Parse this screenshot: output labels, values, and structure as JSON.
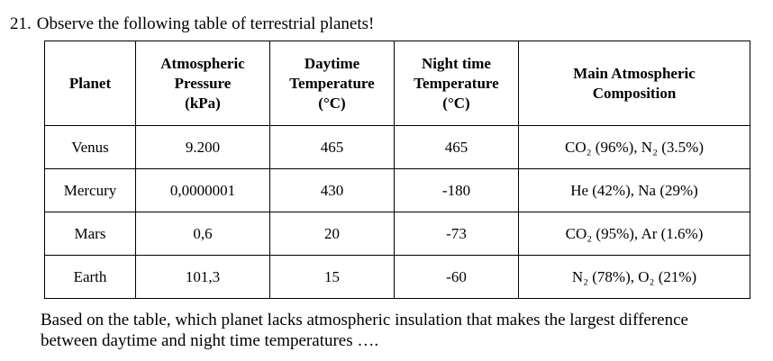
{
  "question": {
    "number": "21.",
    "prompt": "Observe the following table of terrestrial planets!"
  },
  "table": {
    "headers": [
      [
        "Planet"
      ],
      [
        "Atmospheric",
        "Pressure",
        "(kPa)"
      ],
      [
        "Daytime",
        "Temperature",
        "(°C)"
      ],
      [
        "Night time",
        "Temperature",
        "(°C)"
      ],
      [
        "Main Atmospheric",
        "Composition"
      ]
    ],
    "rows": [
      {
        "planet": "Venus",
        "pressure": "9.200",
        "day": "465",
        "night": "465",
        "composition": "CO₂ (96%), N₂ (3.5%)"
      },
      {
        "planet": "Mercury",
        "pressure": "0,0000001",
        "day": "430",
        "night": "-180",
        "composition": "He (42%), Na (29%)"
      },
      {
        "planet": "Mars",
        "pressure": "0,6",
        "day": "20",
        "night": "-73",
        "composition": "CO₂ (95%), Ar (1.6%)"
      },
      {
        "planet": "Earth",
        "pressure": "101,3",
        "day": "15",
        "night": "-60",
        "composition": "N₂ (78%), O₂ (21%)"
      }
    ]
  },
  "footer": {
    "line1": "Based on the table, which planet lacks atmospheric insulation that makes the largest difference",
    "line2": "between daytime and night time temperatures …."
  }
}
